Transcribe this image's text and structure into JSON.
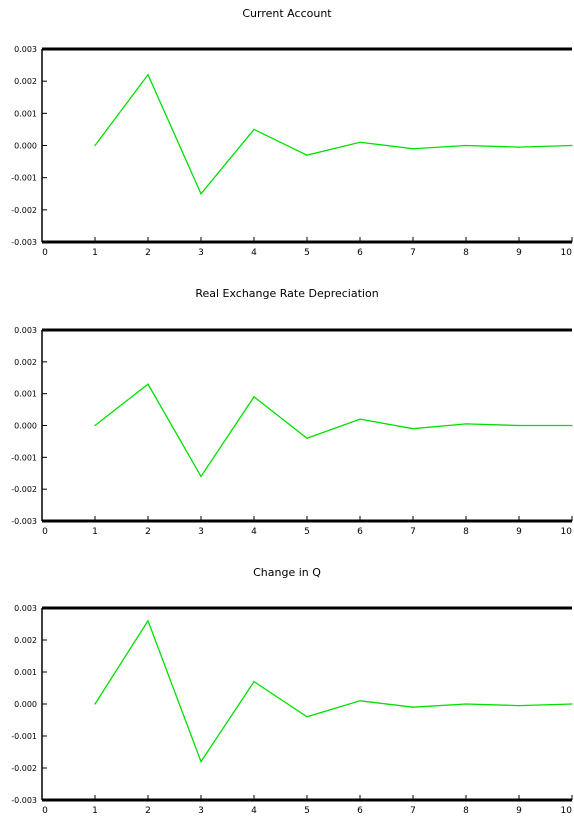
{
  "chart_data": [
    {
      "type": "line",
      "title": "Current Account",
      "x": [
        1,
        2,
        3,
        4,
        5,
        6,
        7,
        8,
        9,
        10
      ],
      "series": [
        {
          "values": [
            0.0,
            0.0022,
            -0.0015,
            0.0005,
            -0.0003,
            0.0001,
            -0.0001,
            0.0,
            -5e-05,
            0.0
          ]
        }
      ],
      "xlim": [
        0,
        10
      ],
      "ylim": [
        -0.003,
        0.003
      ],
      "xticks": [
        "0",
        "1",
        "2",
        "3",
        "4",
        "5",
        "6",
        "7",
        "8",
        "9",
        "10"
      ],
      "yticks": [
        "0.003",
        "0.002",
        "0.001",
        "0.000",
        "-0.001",
        "-0.002",
        "-0.003"
      ],
      "line_color": "#00e000",
      "grid": false
    },
    {
      "type": "line",
      "title": "Real Exchange Rate Depreciation",
      "x": [
        1,
        2,
        3,
        4,
        5,
        6,
        7,
        8,
        9,
        10
      ],
      "series": [
        {
          "values": [
            0.0,
            0.0013,
            -0.0016,
            0.0009,
            -0.0004,
            0.0002,
            -0.0001,
            5e-05,
            0.0,
            0.0
          ]
        }
      ],
      "xlim": [
        0,
        10
      ],
      "ylim": [
        -0.003,
        0.003
      ],
      "xticks": [
        "0",
        "1",
        "2",
        "3",
        "4",
        "5",
        "6",
        "7",
        "8",
        "9",
        "10"
      ],
      "yticks": [
        "0.003",
        "0.002",
        "0.001",
        "0.000",
        "-0.001",
        "-0.002",
        "-0.003"
      ],
      "line_color": "#00e000",
      "grid": false
    },
    {
      "type": "line",
      "title": "Change in Q",
      "x": [
        1,
        2,
        3,
        4,
        5,
        6,
        7,
        8,
        9,
        10
      ],
      "series": [
        {
          "values": [
            0.0,
            0.0026,
            -0.0018,
            0.0007,
            -0.0004,
            0.0001,
            -0.0001,
            0.0,
            -5e-05,
            0.0
          ]
        }
      ],
      "xlim": [
        0,
        10
      ],
      "ylim": [
        -0.003,
        0.003
      ],
      "xticks": [
        "0",
        "1",
        "2",
        "3",
        "4",
        "5",
        "6",
        "7",
        "8",
        "9",
        "10"
      ],
      "yticks": [
        "0.003",
        "0.002",
        "0.001",
        "0.000",
        "-0.001",
        "-0.002",
        "-0.003"
      ],
      "line_color": "#00e000",
      "grid": false
    }
  ]
}
